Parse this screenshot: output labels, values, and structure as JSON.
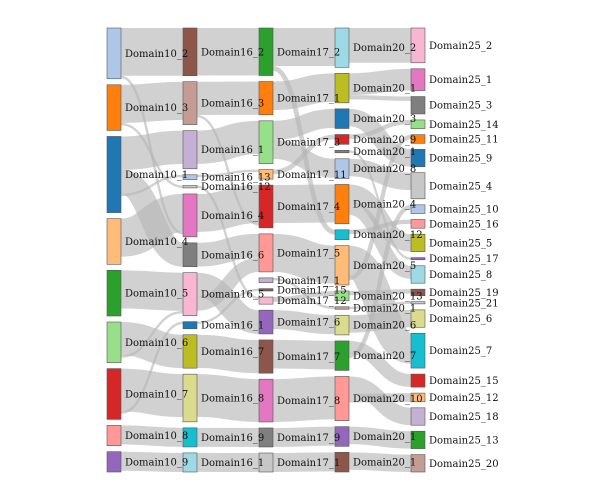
{
  "chart_data": {
    "type": "sankey",
    "title": "",
    "columns": [
      {
        "name": "Domain10",
        "nodes": [
          {
            "id": "Domain10_2",
            "label": "Domain10_2",
            "color": "#aec7e8",
            "value": 10
          },
          {
            "id": "Domain10_3",
            "label": "Domain10_3",
            "color": "#ff7f0e",
            "value": 9
          },
          {
            "id": "Domain10_1",
            "label": "Domain10_1",
            "color": "#1f77b4",
            "value": 15
          },
          {
            "id": "Domain10_4",
            "label": "Domain10_4",
            "color": "#ffbb78",
            "value": 9
          },
          {
            "id": "Domain10_5",
            "label": "Domain10_5",
            "color": "#2ca02c",
            "value": 9
          },
          {
            "id": "Domain10_6",
            "label": "Domain10_6",
            "color": "#98df8a",
            "value": 8
          },
          {
            "id": "Domain10_7",
            "label": "Domain10_7",
            "color": "#d62728",
            "value": 10
          },
          {
            "id": "Domain10_8",
            "label": "Domain10_8",
            "color": "#ff9896",
            "value": 4
          },
          {
            "id": "Domain10_9",
            "label": "Domain10_9",
            "color": "#9467bd",
            "value": 4
          }
        ]
      },
      {
        "name": "Domain16",
        "nodes": [
          {
            "id": "Domain16_2",
            "label": "Domain16_2",
            "color": "#8c564b",
            "value": 10
          },
          {
            "id": "Domain16_3",
            "label": "Domain16_3",
            "color": "#c49c94",
            "value": 9
          },
          {
            "id": "Domain16_1",
            "label": "Domain16_1",
            "color": "#c5b0d5",
            "value": 8
          },
          {
            "id": "Domain16_13",
            "label": "Domain16_13",
            "color": "#aec7e8",
            "value": 1
          },
          {
            "id": "Domain16_12",
            "label": "Domain16_12",
            "color": "#c7c7c7",
            "value": 0.5
          },
          {
            "id": "Domain16_4",
            "label": "Domain16_4",
            "color": "#e377c2",
            "value": 9
          },
          {
            "id": "Domain16_6",
            "label": "Domain16_6",
            "color": "#7f7f7f",
            "value": 5
          },
          {
            "id": "Domain16_5",
            "label": "Domain16_5",
            "color": "#f7b6d2",
            "value": 9
          },
          {
            "id": "Domain16_1x",
            "label": "Domain16_1",
            "color": "#1f77b4",
            "value": 1.5
          },
          {
            "id": "Domain16_7",
            "label": "Domain16_7",
            "color": "#bcbd22",
            "value": 7
          },
          {
            "id": "Domain16_8",
            "label": "Domain16_8",
            "color": "#dbdb8d",
            "value": 10
          },
          {
            "id": "Domain16_9",
            "label": "Domain16_9",
            "color": "#17becf",
            "value": 4
          },
          {
            "id": "Domain16_1y",
            "label": "Domain16_1",
            "color": "#9edae5",
            "value": 4
          }
        ]
      },
      {
        "name": "Domain17",
        "nodes": [
          {
            "id": "Domain17_2",
            "label": "Domain17_2",
            "color": "#2ca02c",
            "value": 10
          },
          {
            "id": "Domain17_1",
            "label": "Domain17_1",
            "color": "#ff7f0e",
            "value": 7
          },
          {
            "id": "Domain17_3",
            "label": "Domain17_3",
            "color": "#98df8a",
            "value": 9
          },
          {
            "id": "Domain17_11",
            "label": "Domain17_11",
            "color": "#ffbb78",
            "value": 2
          },
          {
            "id": "Domain17_4",
            "label": "Domain17_4",
            "color": "#d62728",
            "value": 9
          },
          {
            "id": "Domain17_5",
            "label": "Domain17_5",
            "color": "#ff9896",
            "value": 8
          },
          {
            "id": "Domain17_1b",
            "label": "Domain17_1",
            "color": "#c5b0d5",
            "value": 1
          },
          {
            "id": "Domain17_15",
            "label": "Domain17_15",
            "color": "#8c564b",
            "value": 0.5
          },
          {
            "id": "Domain17_12",
            "label": "Domain17_12",
            "color": "#f7b6d2",
            "value": 1.5
          },
          {
            "id": "Domain17_6",
            "label": "Domain17_6",
            "color": "#9467bd",
            "value": 5
          },
          {
            "id": "Domain17_7",
            "label": "Domain17_7",
            "color": "#8c564b",
            "value": 7
          },
          {
            "id": "Domain17_8",
            "label": "Domain17_8",
            "color": "#e377c2",
            "value": 9
          },
          {
            "id": "Domain17_9",
            "label": "Domain17_9",
            "color": "#7f7f7f",
            "value": 4
          },
          {
            "id": "Domain17_1c",
            "label": "Domain17_1",
            "color": "#c7c7c7",
            "value": 4
          }
        ]
      },
      {
        "name": "Domain20",
        "nodes": [
          {
            "id": "Domain20_2",
            "label": "Domain20_2",
            "color": "#9edae5",
            "value": 8
          },
          {
            "id": "Domain20_1",
            "label": "Domain20_1",
            "color": "#bcbd22",
            "value": 6
          },
          {
            "id": "Domain20_3",
            "label": "Domain20_3",
            "color": "#1f77b4",
            "value": 4
          },
          {
            "id": "Domain20_9",
            "label": "Domain20_9",
            "color": "#d62728",
            "value": 2
          },
          {
            "id": "Domain20_1b",
            "label": "Domain20_1",
            "color": "#7f7f7f",
            "value": 0.5
          },
          {
            "id": "Domain20_8",
            "label": "Domain20_8",
            "color": "#aec7e8",
            "value": 4
          },
          {
            "id": "Domain20_4",
            "label": "Domain20_4",
            "color": "#ff7f0e",
            "value": 8
          },
          {
            "id": "Domain20_12",
            "label": "Domain20_12",
            "color": "#17becf",
            "value": 2
          },
          {
            "id": "Domain20_5",
            "label": "Domain20_5",
            "color": "#ffbb78",
            "value": 8
          },
          {
            "id": "Domain20_13",
            "label": "Domain20_13",
            "color": "#98df8a",
            "value": 2
          },
          {
            "id": "Domain20_1c",
            "label": "Domain20_1",
            "color": "#c49c94",
            "value": 0.5
          },
          {
            "id": "Domain20_6",
            "label": "Domain20_6",
            "color": "#dbdb8d",
            "value": 4
          },
          {
            "id": "Domain20_7",
            "label": "Domain20_7",
            "color": "#2ca02c",
            "value": 6
          },
          {
            "id": "Domain20_10",
            "label": "Domain20_10",
            "color": "#ff9896",
            "value": 9
          },
          {
            "id": "Domain20_1d",
            "label": "Domain20_1",
            "color": "#9467bd",
            "value": 4
          },
          {
            "id": "Domain20_1e",
            "label": "Domain20_1",
            "color": "#8c564b",
            "value": 4
          }
        ]
      },
      {
        "name": "Domain25",
        "nodes": [
          {
            "id": "Domain25_2",
            "label": "Domain25_2",
            "color": "#f7b6d2",
            "value": 8
          },
          {
            "id": "Domain25_1",
            "label": "Domain25_1",
            "color": "#e377c2",
            "value": 5
          },
          {
            "id": "Domain25_3",
            "label": "Domain25_3",
            "color": "#7f7f7f",
            "value": 4
          },
          {
            "id": "Domain25_14",
            "label": "Domain25_14",
            "color": "#98df8a",
            "value": 2
          },
          {
            "id": "Domain25_11",
            "label": "Domain25_11",
            "color": "#ff7f0e",
            "value": 2
          },
          {
            "id": "Domain25_9",
            "label": "Domain25_9",
            "color": "#1f77b4",
            "value": 4
          },
          {
            "id": "Domain25_4",
            "label": "Domain25_4",
            "color": "#c7c7c7",
            "value": 6
          },
          {
            "id": "Domain25_10",
            "label": "Domain25_10",
            "color": "#aec7e8",
            "value": 2
          },
          {
            "id": "Domain25_16",
            "label": "Domain25_16",
            "color": "#ff9896",
            "value": 2
          },
          {
            "id": "Domain25_5",
            "label": "Domain25_5",
            "color": "#bcbd22",
            "value": 4
          },
          {
            "id": "Domain25_17",
            "label": "Domain25_17",
            "color": "#9467bd",
            "value": 0.5
          },
          {
            "id": "Domain25_8",
            "label": "Domain25_8",
            "color": "#9edae5",
            "value": 4
          },
          {
            "id": "Domain25_19",
            "label": "Domain25_19",
            "color": "#8c564b",
            "value": 1.5
          },
          {
            "id": "Domain25_21",
            "label": "Domain25_21",
            "color": "#c7c7c7",
            "value": 0.5
          },
          {
            "id": "Domain25_6",
            "label": "Domain25_6",
            "color": "#dbdb8d",
            "value": 4
          },
          {
            "id": "Domain25_7",
            "label": "Domain25_7",
            "color": "#17becf",
            "value": 8
          },
          {
            "id": "Domain25_15",
            "label": "Domain25_15",
            "color": "#d62728",
            "value": 3
          },
          {
            "id": "Domain25_12",
            "label": "Domain25_12",
            "color": "#ffbb78",
            "value": 2
          },
          {
            "id": "Domain25_18",
            "label": "Domain25_18",
            "color": "#c5b0d5",
            "value": 4
          },
          {
            "id": "Domain25_13",
            "label": "Domain25_13",
            "color": "#2ca02c",
            "value": 4
          },
          {
            "id": "Domain25_20",
            "label": "Domain25_20",
            "color": "#c49c94",
            "value": 4
          }
        ]
      }
    ],
    "links": [
      {
        "source": "Domain10_2",
        "target": "Domain16_2",
        "value": 10
      },
      {
        "source": "Domain10_3",
        "target": "Domain16_3",
        "value": 8
      },
      {
        "source": "Domain10_1",
        "target": "Domain16_1",
        "value": 7
      },
      {
        "source": "Domain10_1",
        "target": "Domain16_6",
        "value": 5
      },
      {
        "source": "Domain10_4",
        "target": "Domain16_4",
        "value": 8
      },
      {
        "source": "Domain10_5",
        "target": "Domain16_5",
        "value": 8
      },
      {
        "source": "Domain10_6",
        "target": "Domain16_7",
        "value": 7
      },
      {
        "source": "Domain10_7",
        "target": "Domain16_8",
        "value": 9
      },
      {
        "source": "Domain10_8",
        "target": "Domain16_9",
        "value": 4
      },
      {
        "source": "Domain10_9",
        "target": "Domain16_1y",
        "value": 4
      },
      {
        "source": "Domain10_1",
        "target": "Domain16_13",
        "value": 0.5
      },
      {
        "source": "Domain10_3",
        "target": "Domain16_12",
        "value": 0.5
      },
      {
        "source": "Domain10_7",
        "target": "Domain16_1x",
        "value": 0.5
      },
      {
        "source": "Domain10_2",
        "target": "Domain16_4",
        "value": 0.5
      },
      {
        "source": "Domain10_6",
        "target": "Domain16_5",
        "value": 0.5
      },
      {
        "source": "Domain16_2",
        "target": "Domain17_2",
        "value": 10
      },
      {
        "source": "Domain16_3",
        "target": "Domain17_1",
        "value": 7
      },
      {
        "source": "Domain16_1",
        "target": "Domain17_3",
        "value": 7
      },
      {
        "source": "Domain16_4",
        "target": "Domain17_4",
        "value": 8
      },
      {
        "source": "Domain16_6",
        "target": "Domain17_5",
        "value": 5
      },
      {
        "source": "Domain16_5",
        "target": "Domain17_6",
        "value": 5
      },
      {
        "source": "Domain16_7",
        "target": "Domain17_7",
        "value": 7
      },
      {
        "source": "Domain16_8",
        "target": "Domain17_8",
        "value": 9
      },
      {
        "source": "Domain16_9",
        "target": "Domain17_9",
        "value": 4
      },
      {
        "source": "Domain16_1y",
        "target": "Domain17_1c",
        "value": 4
      },
      {
        "source": "Domain16_13",
        "target": "Domain17_11",
        "value": 0.5
      },
      {
        "source": "Domain16_12",
        "target": "Domain17_12",
        "value": 0.5
      },
      {
        "source": "Domain16_1x",
        "target": "Domain17_15",
        "value": 0.5
      },
      {
        "source": "Domain16_5",
        "target": "Domain17_5",
        "value": 3
      },
      {
        "source": "Domain16_3",
        "target": "Domain17_4",
        "value": 0.5
      },
      {
        "source": "Domain17_2",
        "target": "Domain20_2",
        "value": 8
      },
      {
        "source": "Domain17_1",
        "target": "Domain20_1",
        "value": 6
      },
      {
        "source": "Domain17_3",
        "target": "Domain20_3",
        "value": 4
      },
      {
        "source": "Domain17_3",
        "target": "Domain20_8",
        "value": 4
      },
      {
        "source": "Domain17_4",
        "target": "Domain20_4",
        "value": 8
      },
      {
        "source": "Domain17_5",
        "target": "Domain20_5",
        "value": 8
      },
      {
        "source": "Domain17_6",
        "target": "Domain20_6",
        "value": 4
      },
      {
        "source": "Domain17_7",
        "target": "Domain20_7",
        "value": 6
      },
      {
        "source": "Domain17_8",
        "target": "Domain20_10",
        "value": 9
      },
      {
        "source": "Domain17_9",
        "target": "Domain20_1d",
        "value": 4
      },
      {
        "source": "Domain17_1c",
        "target": "Domain20_1e",
        "value": 4
      },
      {
        "source": "Domain17_11",
        "target": "Domain20_9",
        "value": 1
      },
      {
        "source": "Domain17_12",
        "target": "Domain20_13",
        "value": 1
      },
      {
        "source": "Domain17_2",
        "target": "Domain20_12",
        "value": 1
      },
      {
        "source": "Domain17_1b",
        "target": "Domain20_1c",
        "value": 0.5
      },
      {
        "source": "Domain20_2",
        "target": "Domain25_2",
        "value": 8
      },
      {
        "source": "Domain20_1",
        "target": "Domain25_1",
        "value": 5
      },
      {
        "source": "Domain20_3",
        "target": "Domain25_9",
        "value": 4
      },
      {
        "source": "Domain20_8",
        "target": "Domain25_4",
        "value": 4
      },
      {
        "source": "Domain20_4",
        "target": "Domain25_5",
        "value": 4
      },
      {
        "source": "Domain20_4",
        "target": "Domain25_8",
        "value": 3
      },
      {
        "source": "Domain20_5",
        "target": "Domain25_7",
        "value": 7
      },
      {
        "source": "Domain20_6",
        "target": "Domain25_6",
        "value": 4
      },
      {
        "source": "Domain20_7",
        "target": "Domain25_15",
        "value": 3
      },
      {
        "source": "Domain20_10",
        "target": "Domain25_18",
        "value": 4
      },
      {
        "source": "Domain20_10",
        "target": "Domain25_12",
        "value": 2
      },
      {
        "source": "Domain20_1d",
        "target": "Domain25_13",
        "value": 4
      },
      {
        "source": "Domain20_1e",
        "target": "Domain25_20",
        "value": 4
      },
      {
        "source": "Domain20_9",
        "target": "Domain25_14",
        "value": 1
      },
      {
        "source": "Domain20_12",
        "target": "Domain25_16",
        "value": 1
      },
      {
        "source": "Domain20_13",
        "target": "Domain25_19",
        "value": 1
      },
      {
        "source": "Domain20_1",
        "target": "Domain25_3",
        "value": 1
      },
      {
        "source": "Domain20_7",
        "target": "Domain25_10",
        "value": 1
      },
      {
        "source": "Domain20_1b",
        "target": "Domain25_17",
        "value": 0.5
      },
      {
        "source": "Domain20_1c",
        "target": "Domain25_21",
        "value": 0.5
      },
      {
        "source": "Domain20_5",
        "target": "Domain25_11",
        "value": 1
      }
    ]
  }
}
